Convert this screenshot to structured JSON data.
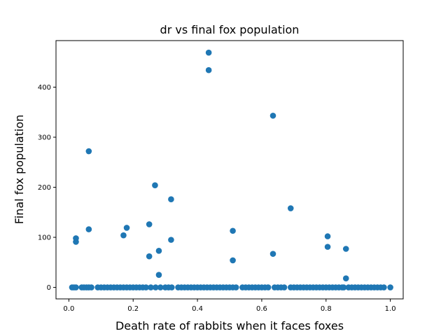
{
  "chart_data": {
    "type": "scatter",
    "title": "dr vs final fox population",
    "xlabel": "Death rate of rabbits when it faces foxes",
    "ylabel": "Final fox population",
    "xlim": [
      -0.04,
      1.04
    ],
    "ylim": [
      -23,
      493
    ],
    "xticks": [
      0.0,
      0.2,
      0.4,
      0.6,
      0.8,
      1.0
    ],
    "xtick_labels": [
      "0.0",
      "0.2",
      "0.4",
      "0.6",
      "0.8",
      "1.0"
    ],
    "yticks": [
      0,
      100,
      200,
      300,
      400
    ],
    "ytick_labels": [
      "0",
      "100",
      "200",
      "300",
      "400"
    ],
    "grid": false,
    "marker_color": "#1f77b4",
    "series": [
      {
        "points": [
          [
            0.01,
            0
          ],
          [
            0.016,
            0
          ],
          [
            0.022,
            0
          ],
          [
            0.022,
            91
          ],
          [
            0.022,
            98
          ],
          [
            0.04,
            0
          ],
          [
            0.047,
            0
          ],
          [
            0.055,
            0
          ],
          [
            0.062,
            0
          ],
          [
            0.062,
            272
          ],
          [
            0.062,
            116
          ],
          [
            0.07,
            0
          ],
          [
            0.09,
            0
          ],
          [
            0.1,
            0
          ],
          [
            0.11,
            0
          ],
          [
            0.12,
            0
          ],
          [
            0.13,
            0
          ],
          [
            0.14,
            0
          ],
          [
            0.15,
            0
          ],
          [
            0.16,
            0
          ],
          [
            0.17,
            0
          ],
          [
            0.17,
            104
          ],
          [
            0.18,
            0
          ],
          [
            0.18,
            119
          ],
          [
            0.19,
            0
          ],
          [
            0.2,
            0
          ],
          [
            0.21,
            0
          ],
          [
            0.22,
            0
          ],
          [
            0.23,
            0
          ],
          [
            0.24,
            0
          ],
          [
            0.25,
            126
          ],
          [
            0.25,
            62
          ],
          [
            0.255,
            0
          ],
          [
            0.268,
            204
          ],
          [
            0.27,
            0
          ],
          [
            0.28,
            73
          ],
          [
            0.28,
            25
          ],
          [
            0.285,
            0
          ],
          [
            0.3,
            0
          ],
          [
            0.31,
            0
          ],
          [
            0.318,
            176
          ],
          [
            0.318,
            95
          ],
          [
            0.32,
            0
          ],
          [
            0.34,
            0
          ],
          [
            0.35,
            0
          ],
          [
            0.36,
            0
          ],
          [
            0.37,
            0
          ],
          [
            0.38,
            0
          ],
          [
            0.39,
            0
          ],
          [
            0.4,
            0
          ],
          [
            0.41,
            0
          ],
          [
            0.42,
            0
          ],
          [
            0.43,
            0
          ],
          [
            0.435,
            469
          ],
          [
            0.435,
            434
          ],
          [
            0.44,
            0
          ],
          [
            0.45,
            0
          ],
          [
            0.46,
            0
          ],
          [
            0.47,
            0
          ],
          [
            0.48,
            0
          ],
          [
            0.49,
            0
          ],
          [
            0.5,
            0
          ],
          [
            0.51,
            0
          ],
          [
            0.51,
            113
          ],
          [
            0.51,
            54
          ],
          [
            0.52,
            0
          ],
          [
            0.54,
            0
          ],
          [
            0.55,
            0
          ],
          [
            0.56,
            0
          ],
          [
            0.57,
            0
          ],
          [
            0.58,
            0
          ],
          [
            0.59,
            0
          ],
          [
            0.6,
            0
          ],
          [
            0.61,
            0
          ],
          [
            0.62,
            0
          ],
          [
            0.635,
            343
          ],
          [
            0.635,
            67
          ],
          [
            0.64,
            0
          ],
          [
            0.65,
            0
          ],
          [
            0.66,
            0
          ],
          [
            0.67,
            0
          ],
          [
            0.69,
            0
          ],
          [
            0.69,
            158
          ],
          [
            0.7,
            0
          ],
          [
            0.71,
            0
          ],
          [
            0.72,
            0
          ],
          [
            0.73,
            0
          ],
          [
            0.74,
            0
          ],
          [
            0.75,
            0
          ],
          [
            0.76,
            0
          ],
          [
            0.77,
            0
          ],
          [
            0.78,
            0
          ],
          [
            0.79,
            0
          ],
          [
            0.8,
            0
          ],
          [
            0.805,
            102
          ],
          [
            0.805,
            81
          ],
          [
            0.81,
            0
          ],
          [
            0.82,
            0
          ],
          [
            0.83,
            0
          ],
          [
            0.84,
            0
          ],
          [
            0.85,
            0
          ],
          [
            0.855,
            0
          ],
          [
            0.862,
            77
          ],
          [
            0.862,
            18
          ],
          [
            0.87,
            0
          ],
          [
            0.88,
            0
          ],
          [
            0.89,
            0
          ],
          [
            0.9,
            0
          ],
          [
            0.91,
            0
          ],
          [
            0.92,
            0
          ],
          [
            0.93,
            0
          ],
          [
            0.94,
            0
          ],
          [
            0.95,
            0
          ],
          [
            0.96,
            0
          ],
          [
            0.97,
            0
          ],
          [
            0.98,
            0
          ],
          [
            1.0,
            0
          ]
        ]
      }
    ]
  }
}
